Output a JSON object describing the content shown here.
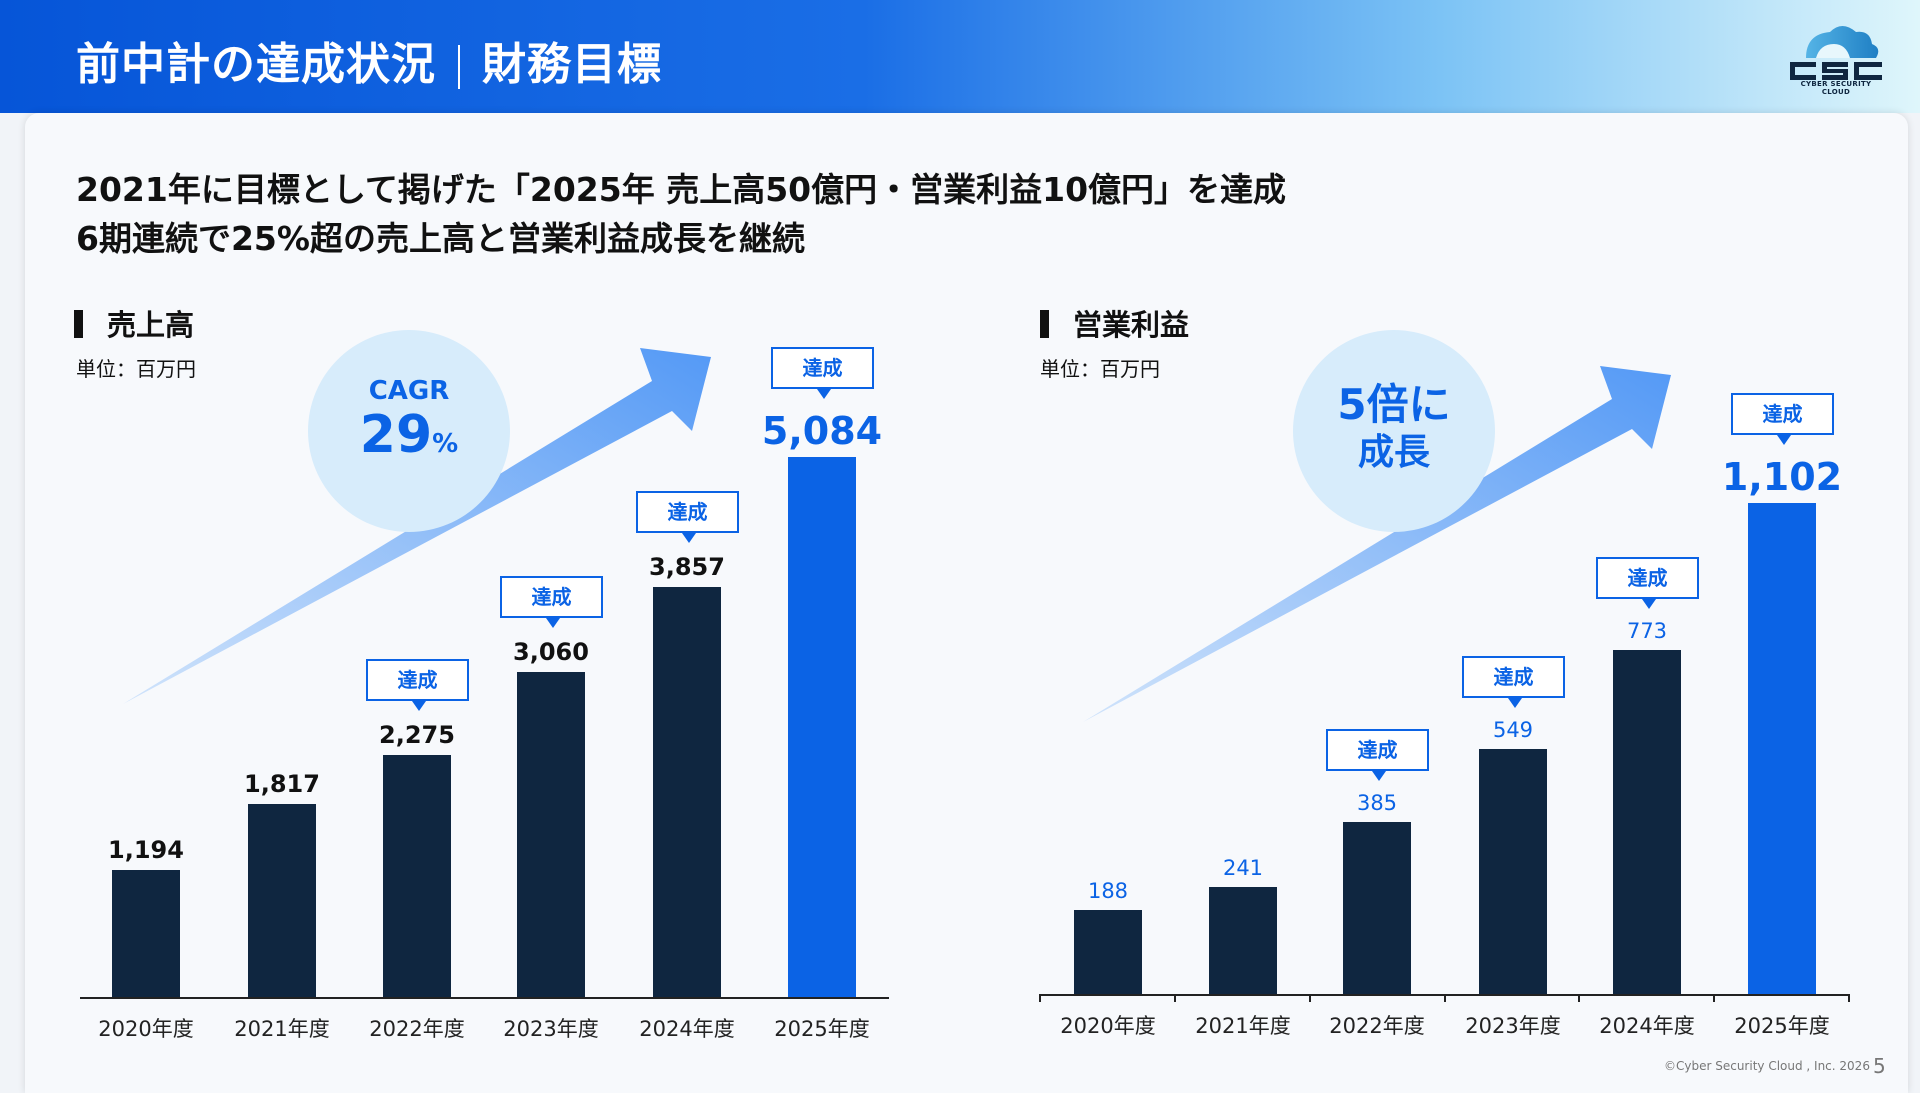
{
  "header": {
    "title_main": "前中計の達成状況",
    "title_sub": "財務目標",
    "logo_text": "CSC",
    "logo_sub": "CYBER SECURITY CLOUD"
  },
  "headline": [
    "2021年に目標として掲げた「2025年 売上高50億円・営業利益10億円」を達成",
    "6期連続で25%超の売上高と営業利益成長を継続"
  ],
  "colors": {
    "dark_bar": "#0f2640",
    "accent_bar": "#0b63e5",
    "badge": "#0b63e5"
  },
  "badge_label": "達成",
  "chart_data": [
    {
      "type": "bar",
      "title": "売上高",
      "unit": "単位：百万円",
      "categories": [
        "2020年度",
        "2021年度",
        "2022年度",
        "2023年度",
        "2024年度",
        "2025年度"
      ],
      "values": [
        1194,
        1817,
        2275,
        3060,
        3857,
        5084
      ],
      "labels": [
        "1,194",
        "1,817",
        "2,275",
        "3,060",
        "3,857",
        "5,084"
      ],
      "achieved": [
        false,
        false,
        true,
        true,
        true,
        true
      ],
      "ylim": [
        0,
        5084
      ],
      "callout": {
        "line1": "CAGR",
        "line2": "29",
        "suffix": "%"
      }
    },
    {
      "type": "bar",
      "title": "営業利益",
      "unit": "単位：百万円",
      "categories": [
        "2020年度",
        "2021年度",
        "2022年度",
        "2023年度",
        "2024年度",
        "2025年度"
      ],
      "values": [
        188,
        241,
        385,
        549,
        773,
        1102
      ],
      "labels": [
        "188",
        "241",
        "385",
        "549",
        "773",
        "1,102"
      ],
      "achieved": [
        false,
        false,
        true,
        true,
        true,
        true
      ],
      "ylim": [
        0,
        1102
      ],
      "callout": {
        "line1": "5倍に",
        "line2": "成長",
        "suffix": ""
      }
    }
  ],
  "footer": {
    "copyright": "©Cyber Security Cloud , Inc. 2026",
    "page": "5"
  }
}
